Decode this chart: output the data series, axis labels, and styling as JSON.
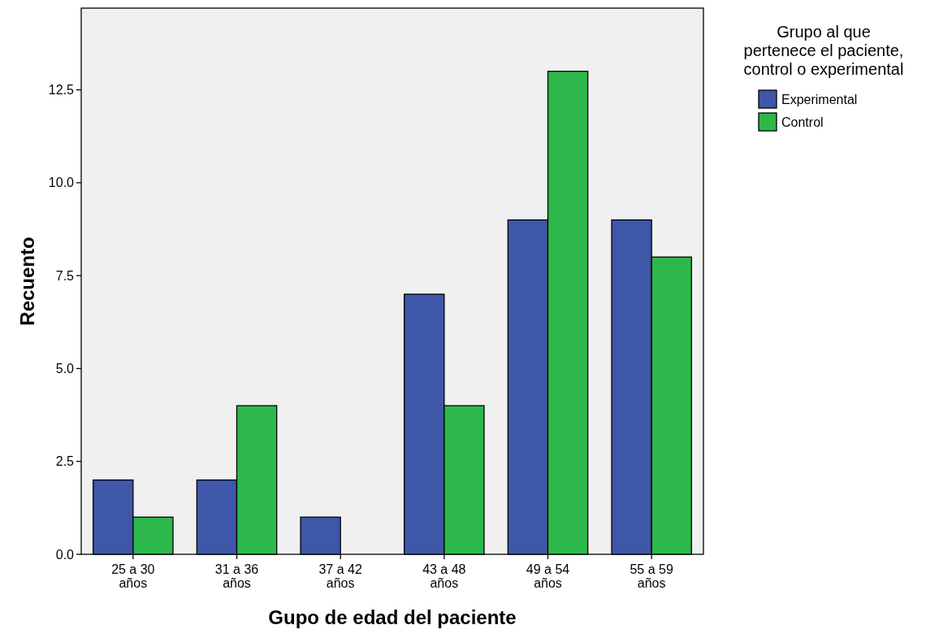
{
  "chart_data": {
    "type": "bar",
    "categories": [
      "25 a 30 años",
      "31 a 36 años",
      "37 a 42 años",
      "43 a 48 años",
      "49 a 54 años",
      "55 a 59 años"
    ],
    "series": [
      {
        "name": "Experimental",
        "color": "#3f57a8",
        "values": [
          2,
          2,
          1,
          7,
          9,
          9
        ]
      },
      {
        "name": "Control",
        "color": "#2db84b",
        "values": [
          1,
          4,
          0,
          4,
          13,
          8
        ]
      }
    ],
    "xlabel": "Gupo de edad del paciente",
    "ylabel": "Recuento",
    "legend_title": "Grupo al que\npertenece el paciente,\ncontrol o experimental",
    "legend": "right",
    "ylim": [
      0,
      14.7
    ],
    "yticks": [
      {
        "value": 0,
        "label": "0.0"
      },
      {
        "value": 2.5,
        "label": "2.5"
      },
      {
        "value": 5,
        "label": "5.0"
      },
      {
        "value": 7.5,
        "label": "7.5"
      },
      {
        "value": 10,
        "label": "10.0"
      },
      {
        "value": 12.5,
        "label": "12.5"
      }
    ],
    "grid": false
  }
}
